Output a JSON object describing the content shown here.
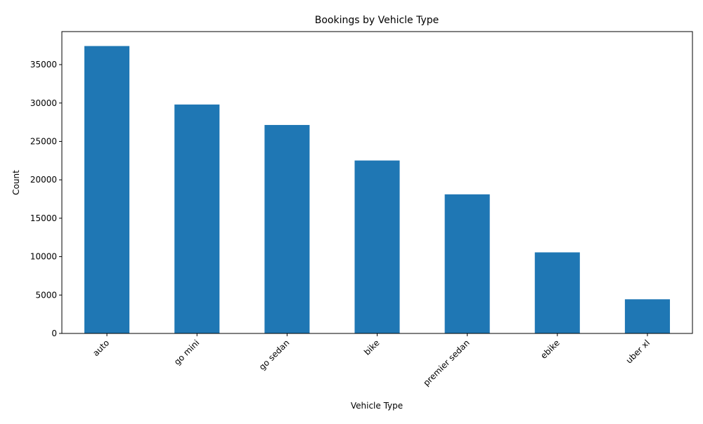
{
  "chart_data": {
    "type": "bar",
    "title": "Bookings by Vehicle Type",
    "xlabel": "Vehicle Type",
    "ylabel": "Count",
    "categories": [
      "auto",
      "go mini",
      "go sedan",
      "bike",
      "premier sedan",
      "ebike",
      "uber xl"
    ],
    "values": [
      37419,
      29806,
      27141,
      22517,
      18111,
      10557,
      4449
    ],
    "ylim": [
      0,
      39300
    ],
    "yticks": [
      0,
      5000,
      10000,
      15000,
      20000,
      25000,
      30000,
      35000
    ],
    "ytick_labels": [
      "0",
      "5000",
      "10000",
      "15000",
      "20000",
      "25000",
      "30000",
      "35000"
    ],
    "bar_color": "#1f77b4",
    "grid": false,
    "legend": "none"
  }
}
